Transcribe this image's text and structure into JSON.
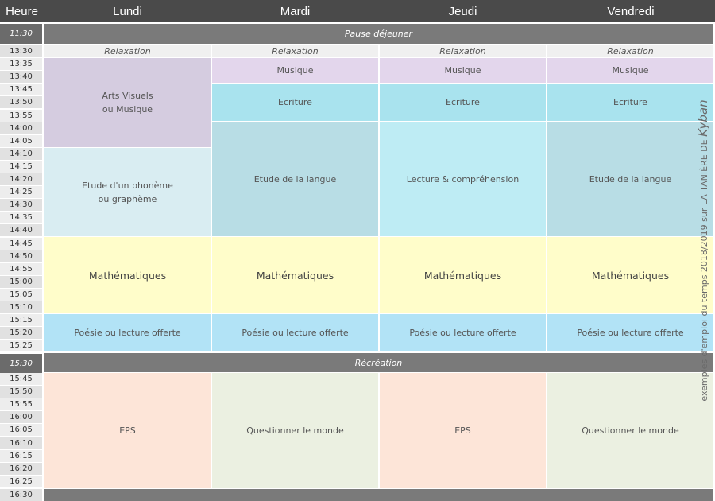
{
  "header": {
    "heure": "Heure",
    "days": [
      "Lundi",
      "Mardi",
      "Jeudi",
      "Vendredi"
    ]
  },
  "times": [
    "11:30",
    "13:30",
    "13:35",
    "13:40",
    "13:45",
    "13:50",
    "13:55",
    "14:00",
    "14:05",
    "14:10",
    "14:15",
    "14:20",
    "14:25",
    "14:30",
    "14:35",
    "14:40",
    "14:45",
    "14:50",
    "14:55",
    "15:00",
    "15:05",
    "15:10",
    "15:15",
    "15:20",
    "15:25",
    "15:30",
    "15:45",
    "15:50",
    "15:55",
    "16:00",
    "16:05",
    "16:10",
    "16:15",
    "16:20",
    "16:25",
    "16:30"
  ],
  "bands": {
    "lunch": "Pause déjeuner",
    "recreation": "Récréation"
  },
  "lundi": {
    "relax": "Relaxation",
    "arts": "Arts Visuels\nou Musique",
    "phoneme": "Etude d'un phonème\nou graphème",
    "math": "Mathématiques",
    "poesie": "Poésie ou lecture offerte",
    "afternoon": "EPS"
  },
  "mardi": {
    "relax": "Relaxation",
    "musique": "Musique",
    "ecriture": "Ecriture",
    "langue": "Etude de la langue",
    "math": "Mathématiques",
    "poesie": "Poésie ou lecture offerte",
    "afternoon": "Questionner le monde"
  },
  "jeudi": {
    "relax": "Relaxation",
    "musique": "Musique",
    "ecriture": "Ecriture",
    "langue": "Lecture & compréhension",
    "math": "Mathématiques",
    "poesie": "Poésie ou lecture offerte",
    "afternoon": "EPS"
  },
  "vendredi": {
    "relax": "Relaxation",
    "musique": "Musique",
    "ecriture": "Ecriture",
    "langue": "Etude de la langue",
    "math": "Mathématiques",
    "poesie": "Poésie ou lecture offerte",
    "afternoon": "Questionner le monde"
  },
  "watermark": {
    "text": "exemples d'emploi du temps 2018/2019 sur LA TANIÈRE DE",
    "brand": "Kyban"
  },
  "colors": {
    "header": "#4a4a4a",
    "band": "#7a7a7a",
    "relaxation": "#f0f0f0",
    "musique": "#e3d6ec",
    "arts": "#d5cce0",
    "ecriture": "#a9e3ee",
    "phoneme": "#d9edf2",
    "langue": "#b8dde5",
    "lecture": "#beecf4",
    "mathematiques": "#fffdca",
    "poesie": "#b2e3f6",
    "eps": "#fde5d8",
    "questionner": "#ebf0e1"
  }
}
